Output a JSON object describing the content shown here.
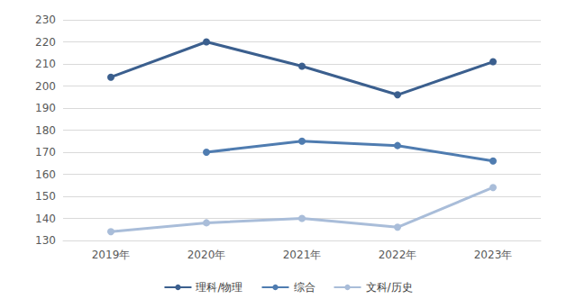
{
  "chart_data": {
    "type": "line",
    "categories": [
      "2019年",
      "2020年",
      "2021年",
      "2022年",
      "2023年"
    ],
    "series": [
      {
        "name": "理科/物理",
        "color": "#3b5f8e",
        "values": [
          204,
          220,
          209,
          196,
          211
        ]
      },
      {
        "name": "综合",
        "color": "#4f7cb0",
        "values": [
          null,
          170,
          175,
          173,
          166
        ]
      },
      {
        "name": "文科/历史",
        "color": "#a9bdd9",
        "values": [
          134,
          138,
          140,
          136,
          154
        ]
      }
    ],
    "ylim": [
      130,
      230
    ],
    "yticks": [
      130,
      140,
      150,
      160,
      170,
      180,
      190,
      200,
      210,
      220,
      230
    ],
    "grid": true,
    "legend": "bottom",
    "marker": "circle"
  }
}
